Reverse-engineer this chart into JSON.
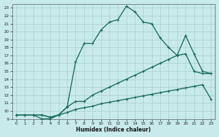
{
  "xlabel": "Humidex (Indice chaleur)",
  "bg_color": "#c8eaea",
  "grid_color": "#a8cccc",
  "line_color": "#1a6a5a",
  "xlim": [
    -0.5,
    23.5
  ],
  "ylim": [
    9,
    23.5
  ],
  "xticks": [
    0,
    1,
    2,
    3,
    4,
    5,
    6,
    7,
    8,
    9,
    10,
    11,
    12,
    13,
    14,
    15,
    16,
    17,
    18,
    19,
    20,
    21,
    22,
    23
  ],
  "yticks": [
    9,
    10,
    11,
    12,
    13,
    14,
    15,
    16,
    17,
    18,
    19,
    20,
    21,
    22,
    23
  ],
  "line1_x": [
    0,
    1,
    2,
    3,
    4,
    5,
    6,
    7,
    8,
    9,
    10,
    11,
    12,
    13,
    14,
    15,
    16,
    17,
    18,
    19,
    20,
    21,
    22,
    23
  ],
  "line1_y": [
    9.5,
    9.5,
    9.5,
    9.5,
    9.2,
    9.5,
    9.8,
    10.2,
    10.4,
    10.6,
    10.9,
    11.1,
    11.3,
    11.5,
    11.7,
    11.9,
    12.1,
    12.3,
    12.5,
    12.7,
    12.9,
    13.1,
    13.3,
    11.5
  ],
  "line2_x": [
    0,
    1,
    2,
    3,
    4,
    5,
    6,
    7,
    8,
    9,
    10,
    11,
    12,
    13,
    14,
    15,
    16,
    17,
    18,
    19,
    20,
    21,
    22,
    23
  ],
  "line2_y": [
    9.5,
    9.5,
    9.5,
    9.5,
    9.2,
    9.5,
    10.5,
    11.2,
    11.2,
    12.0,
    12.5,
    13.0,
    13.5,
    14.0,
    14.5,
    15.0,
    15.5,
    16.0,
    16.5,
    17.0,
    17.2,
    15.0,
    14.7,
    14.7
  ],
  "line3_x": [
    0,
    1,
    2,
    3,
    4,
    5,
    6,
    7,
    8,
    9,
    10,
    11,
    12,
    13,
    14,
    15,
    16,
    17,
    18,
    19,
    20,
    21,
    22,
    23
  ],
  "line3_y": [
    9.5,
    9.5,
    9.5,
    9.0,
    9.0,
    9.5,
    10.5,
    16.2,
    18.5,
    18.5,
    20.2,
    21.2,
    21.5,
    23.2,
    22.5,
    21.2,
    21.0,
    19.2,
    18.0,
    17.0,
    19.5,
    17.2,
    15.0,
    14.7
  ]
}
